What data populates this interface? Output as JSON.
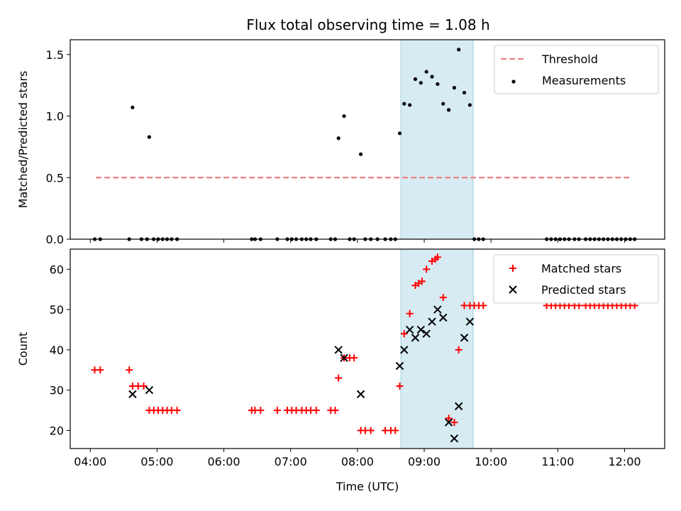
{
  "title": "Flux total observing time = 1.08 h",
  "chart_data": [
    {
      "type": "scatter",
      "ylabel": "Matched/Predicted stars",
      "xlabel": "",
      "ylim": [
        0,
        1.62
      ],
      "yticks": [
        "0.0",
        "0.5",
        "1.0",
        "1.5"
      ],
      "highlight_span": {
        "start": "08:39",
        "end": "09:44"
      },
      "legend": {
        "placement": "top-right",
        "items": [
          "Threshold",
          "Measurements"
        ]
      },
      "series": [
        {
          "name": "Threshold",
          "kind": "dashed-line",
          "color": "#f08080",
          "points": [
            {
              "x": "04:05",
              "y": 0.5
            },
            {
              "x": "12:05",
              "y": 0.5
            }
          ]
        },
        {
          "name": "Measurements",
          "kind": "dot",
          "color": "#000000",
          "points": [
            {
              "x": "04:04",
              "y": 0
            },
            {
              "x": "04:09",
              "y": 0
            },
            {
              "x": "04:35",
              "y": 0
            },
            {
              "x": "04:38",
              "y": 1.07
            },
            {
              "x": "04:46",
              "y": 0
            },
            {
              "x": "04:51",
              "y": 0
            },
            {
              "x": "04:53",
              "y": 0.83
            },
            {
              "x": "04:57",
              "y": 0
            },
            {
              "x": "05:01",
              "y": 0
            },
            {
              "x": "05:05",
              "y": 0
            },
            {
              "x": "05:09",
              "y": 0
            },
            {
              "x": "05:13",
              "y": 0
            },
            {
              "x": "05:18",
              "y": 0
            },
            {
              "x": "06:25",
              "y": 0
            },
            {
              "x": "06:28",
              "y": 0
            },
            {
              "x": "06:33",
              "y": 0
            },
            {
              "x": "06:48",
              "y": 0
            },
            {
              "x": "06:57",
              "y": 0
            },
            {
              "x": "07:01",
              "y": 0
            },
            {
              "x": "07:05",
              "y": 0
            },
            {
              "x": "07:10",
              "y": 0
            },
            {
              "x": "07:14",
              "y": 0
            },
            {
              "x": "07:18",
              "y": 0
            },
            {
              "x": "07:23",
              "y": 0
            },
            {
              "x": "07:36",
              "y": 0
            },
            {
              "x": "07:40",
              "y": 0
            },
            {
              "x": "07:43",
              "y": 0.82
            },
            {
              "x": "07:48",
              "y": 1.0
            },
            {
              "x": "07:53",
              "y": 0
            },
            {
              "x": "07:57",
              "y": 0
            },
            {
              "x": "08:03",
              "y": 0.69
            },
            {
              "x": "08:07",
              "y": 0
            },
            {
              "x": "08:12",
              "y": 0
            },
            {
              "x": "08:18",
              "y": 0
            },
            {
              "x": "08:25",
              "y": 0
            },
            {
              "x": "08:30",
              "y": 0
            },
            {
              "x": "08:34",
              "y": 0
            },
            {
              "x": "08:38",
              "y": 0.86
            },
            {
              "x": "08:42",
              "y": 1.1
            },
            {
              "x": "08:47",
              "y": 1.09
            },
            {
              "x": "08:52",
              "y": 1.3
            },
            {
              "x": "08:57",
              "y": 1.27
            },
            {
              "x": "09:02",
              "y": 1.36
            },
            {
              "x": "09:07",
              "y": 1.32
            },
            {
              "x": "09:12",
              "y": 1.26
            },
            {
              "x": "09:17",
              "y": 1.1
            },
            {
              "x": "09:22",
              "y": 1.05
            },
            {
              "x": "09:27",
              "y": 1.23
            },
            {
              "x": "09:31",
              "y": 1.54
            },
            {
              "x": "09:36",
              "y": 1.19
            },
            {
              "x": "09:41",
              "y": 1.09
            },
            {
              "x": "09:45",
              "y": 0
            },
            {
              "x": "09:49",
              "y": 0
            },
            {
              "x": "09:53",
              "y": 0
            },
            {
              "x": "10:50",
              "y": 0
            },
            {
              "x": "10:54",
              "y": 0
            },
            {
              "x": "10:58",
              "y": 0
            },
            {
              "x": "11:02",
              "y": 0
            },
            {
              "x": "11:06",
              "y": 0
            },
            {
              "x": "11:10",
              "y": 0
            },
            {
              "x": "11:15",
              "y": 0
            },
            {
              "x": "11:19",
              "y": 0
            },
            {
              "x": "11:25",
              "y": 0
            },
            {
              "x": "11:29",
              "y": 0
            },
            {
              "x": "11:33",
              "y": 0
            },
            {
              "x": "11:37",
              "y": 0
            },
            {
              "x": "11:41",
              "y": 0
            },
            {
              "x": "11:45",
              "y": 0
            },
            {
              "x": "11:49",
              "y": 0
            },
            {
              "x": "11:53",
              "y": 0
            },
            {
              "x": "11:57",
              "y": 0
            },
            {
              "x": "12:01",
              "y": 0
            },
            {
              "x": "12:05",
              "y": 0
            },
            {
              "x": "12:09",
              "y": 0
            }
          ]
        }
      ]
    },
    {
      "type": "scatter",
      "ylabel": "Count",
      "xlabel": "Time (UTC)",
      "ylim": [
        15.5,
        65
      ],
      "yticks": [
        "20",
        "30",
        "40",
        "50",
        "60"
      ],
      "xticks": [
        "04:00",
        "05:00",
        "06:00",
        "07:00",
        "08:00",
        "09:00",
        "10:00",
        "11:00",
        "12:00"
      ],
      "highlight_span": {
        "start": "08:39",
        "end": "09:44"
      },
      "legend": {
        "placement": "top-right",
        "items": [
          "Matched stars",
          "Predicted stars"
        ]
      },
      "series": [
        {
          "name": "Matched stars",
          "kind": "plus",
          "color": "#ff0000",
          "points": [
            {
              "x": "04:04",
              "y": 35
            },
            {
              "x": "04:09",
              "y": 35
            },
            {
              "x": "04:35",
              "y": 35
            },
            {
              "x": "04:38",
              "y": 31
            },
            {
              "x": "04:43",
              "y": 31
            },
            {
              "x": "04:48",
              "y": 31
            },
            {
              "x": "04:53",
              "y": 25
            },
            {
              "x": "04:57",
              "y": 25
            },
            {
              "x": "05:01",
              "y": 25
            },
            {
              "x": "05:05",
              "y": 25
            },
            {
              "x": "05:09",
              "y": 25
            },
            {
              "x": "05:13",
              "y": 25
            },
            {
              "x": "05:18",
              "y": 25
            },
            {
              "x": "06:25",
              "y": 25
            },
            {
              "x": "06:28",
              "y": 25
            },
            {
              "x": "06:33",
              "y": 25
            },
            {
              "x": "06:48",
              "y": 25
            },
            {
              "x": "06:57",
              "y": 25
            },
            {
              "x": "07:01",
              "y": 25
            },
            {
              "x": "07:05",
              "y": 25
            },
            {
              "x": "07:10",
              "y": 25
            },
            {
              "x": "07:14",
              "y": 25
            },
            {
              "x": "07:18",
              "y": 25
            },
            {
              "x": "07:23",
              "y": 25
            },
            {
              "x": "07:36",
              "y": 25
            },
            {
              "x": "07:40",
              "y": 25
            },
            {
              "x": "07:43",
              "y": 33
            },
            {
              "x": "07:48",
              "y": 38
            },
            {
              "x": "07:53",
              "y": 38
            },
            {
              "x": "07:57",
              "y": 38
            },
            {
              "x": "08:03",
              "y": 20
            },
            {
              "x": "08:07",
              "y": 20
            },
            {
              "x": "08:12",
              "y": 20
            },
            {
              "x": "08:25",
              "y": 20
            },
            {
              "x": "08:30",
              "y": 20
            },
            {
              "x": "08:34",
              "y": 20
            },
            {
              "x": "08:38",
              "y": 31
            },
            {
              "x": "08:42",
              "y": 44
            },
            {
              "x": "08:47",
              "y": 49
            },
            {
              "x": "08:52",
              "y": 56
            },
            {
              "x": "08:55",
              "y": 56.5
            },
            {
              "x": "08:58",
              "y": 57
            },
            {
              "x": "09:02",
              "y": 60
            },
            {
              "x": "09:07",
              "y": 62
            },
            {
              "x": "09:10",
              "y": 62.5
            },
            {
              "x": "09:12",
              "y": 63
            },
            {
              "x": "09:17",
              "y": 53
            },
            {
              "x": "09:22",
              "y": 23
            },
            {
              "x": "09:27",
              "y": 22
            },
            {
              "x": "09:31",
              "y": 40
            },
            {
              "x": "09:36",
              "y": 51
            },
            {
              "x": "09:41",
              "y": 51
            },
            {
              "x": "09:45",
              "y": 51
            },
            {
              "x": "09:49",
              "y": 51
            },
            {
              "x": "09:53",
              "y": 51
            },
            {
              "x": "10:50",
              "y": 51
            },
            {
              "x": "10:54",
              "y": 51
            },
            {
              "x": "10:58",
              "y": 51
            },
            {
              "x": "11:02",
              "y": 51
            },
            {
              "x": "11:06",
              "y": 51
            },
            {
              "x": "11:10",
              "y": 51
            },
            {
              "x": "11:15",
              "y": 51
            },
            {
              "x": "11:19",
              "y": 51
            },
            {
              "x": "11:25",
              "y": 51
            },
            {
              "x": "11:29",
              "y": 51
            },
            {
              "x": "11:33",
              "y": 51
            },
            {
              "x": "11:37",
              "y": 51
            },
            {
              "x": "11:41",
              "y": 51
            },
            {
              "x": "11:45",
              "y": 51
            },
            {
              "x": "11:49",
              "y": 51
            },
            {
              "x": "11:53",
              "y": 51
            },
            {
              "x": "11:57",
              "y": 51
            },
            {
              "x": "12:01",
              "y": 51
            },
            {
              "x": "12:05",
              "y": 51
            },
            {
              "x": "12:09",
              "y": 51
            }
          ]
        },
        {
          "name": "Predicted stars",
          "kind": "x",
          "color": "#000000",
          "points": [
            {
              "x": "04:38",
              "y": 29
            },
            {
              "x": "04:53",
              "y": 30
            },
            {
              "x": "07:43",
              "y": 40
            },
            {
              "x": "07:48",
              "y": 38
            },
            {
              "x": "08:03",
              "y": 29
            },
            {
              "x": "08:38",
              "y": 36
            },
            {
              "x": "08:42",
              "y": 40
            },
            {
              "x": "08:47",
              "y": 45
            },
            {
              "x": "08:52",
              "y": 43
            },
            {
              "x": "08:57",
              "y": 45
            },
            {
              "x": "09:02",
              "y": 44
            },
            {
              "x": "09:07",
              "y": 47
            },
            {
              "x": "09:12",
              "y": 50
            },
            {
              "x": "09:17",
              "y": 48
            },
            {
              "x": "09:22",
              "y": 22
            },
            {
              "x": "09:27",
              "y": 18
            },
            {
              "x": "09:31",
              "y": 26
            },
            {
              "x": "09:36",
              "y": 43
            },
            {
              "x": "09:41",
              "y": 47
            }
          ]
        }
      ]
    }
  ]
}
